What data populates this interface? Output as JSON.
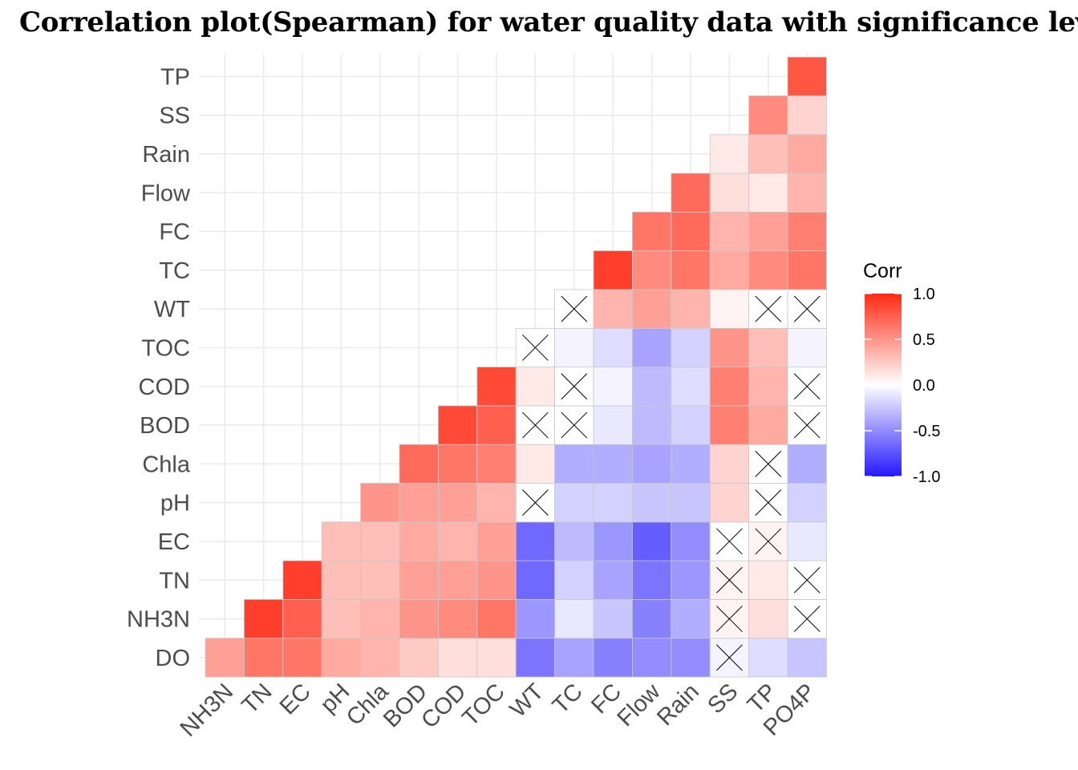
{
  "chart_data": {
    "type": "heatmap",
    "title": "Correlation plot(Spearman) for water quality data with significance level",
    "x_categories": [
      "NH3N",
      "TN",
      "EC",
      "pH",
      "Chla",
      "BOD",
      "COD",
      "TOC",
      "WT",
      "TC",
      "FC",
      "Flow",
      "Rain",
      "SS",
      "TP",
      "PO4P"
    ],
    "y_categories": [
      "DO",
      "NH3N",
      "TN",
      "EC",
      "pH",
      "Chla",
      "BOD",
      "COD",
      "TOC",
      "WT",
      "TC",
      "FC",
      "Flow",
      "Rain",
      "SS",
      "TP"
    ],
    "values": [
      [
        0.45,
        0.65,
        0.65,
        0.4,
        0.35,
        0.25,
        0.15,
        0.15,
        -0.6,
        -0.4,
        -0.55,
        -0.5,
        -0.5,
        -0.05,
        -0.15,
        -0.25
      ],
      [
        null,
        0.9,
        0.75,
        0.3,
        0.35,
        0.5,
        0.55,
        0.65,
        -0.45,
        -0.1,
        -0.25,
        -0.55,
        -0.35,
        0.05,
        0.15,
        0.0
      ],
      [
        null,
        null,
        0.9,
        0.3,
        0.3,
        0.45,
        0.45,
        0.5,
        -0.65,
        -0.2,
        -0.4,
        -0.6,
        -0.45,
        0.05,
        0.1,
        0.0
      ],
      [
        null,
        null,
        null,
        0.3,
        0.3,
        0.4,
        0.35,
        0.45,
        -0.65,
        -0.3,
        -0.45,
        -0.7,
        -0.5,
        0.0,
        0.05,
        -0.1
      ],
      [
        null,
        null,
        null,
        null,
        0.5,
        0.45,
        0.45,
        0.35,
        0.0,
        -0.2,
        -0.2,
        -0.25,
        -0.25,
        0.2,
        0.0,
        -0.2
      ],
      [
        null,
        null,
        null,
        null,
        null,
        0.7,
        0.65,
        0.6,
        0.1,
        -0.35,
        -0.35,
        -0.4,
        -0.35,
        0.2,
        0.0,
        -0.35
      ],
      [
        null,
        null,
        null,
        null,
        null,
        null,
        0.85,
        0.75,
        0.0,
        0.0,
        -0.1,
        -0.3,
        -0.2,
        0.6,
        0.4,
        0.0
      ],
      [
        null,
        null,
        null,
        null,
        null,
        null,
        null,
        0.85,
        0.1,
        0.0,
        -0.05,
        -0.3,
        -0.15,
        0.6,
        0.35,
        0.0
      ],
      [
        null,
        null,
        null,
        null,
        null,
        null,
        null,
        null,
        0.0,
        -0.05,
        -0.15,
        -0.4,
        -0.2,
        0.5,
        0.3,
        -0.05
      ],
      [
        null,
        null,
        null,
        null,
        null,
        null,
        null,
        null,
        null,
        0.0,
        0.35,
        0.45,
        0.35,
        0.05,
        0.0,
        0.0
      ],
      [
        null,
        null,
        null,
        null,
        null,
        null,
        null,
        null,
        null,
        null,
        0.9,
        0.55,
        0.65,
        0.4,
        0.55,
        0.65
      ],
      [
        null,
        null,
        null,
        null,
        null,
        null,
        null,
        null,
        null,
        null,
        null,
        0.65,
        0.7,
        0.35,
        0.45,
        0.6
      ],
      [
        null,
        null,
        null,
        null,
        null,
        null,
        null,
        null,
        null,
        null,
        null,
        null,
        0.7,
        0.15,
        0.1,
        0.35
      ],
      [
        null,
        null,
        null,
        null,
        null,
        null,
        null,
        null,
        null,
        null,
        null,
        null,
        null,
        0.1,
        0.3,
        0.4
      ],
      [
        null,
        null,
        null,
        null,
        null,
        null,
        null,
        null,
        null,
        null,
        null,
        null,
        null,
        null,
        0.55,
        0.2
      ],
      [
        null,
        null,
        null,
        null,
        null,
        null,
        null,
        null,
        null,
        null,
        null,
        null,
        null,
        null,
        null,
        0.8
      ]
    ],
    "insignificant": [
      [
        0,
        13
      ],
      [
        1,
        13
      ],
      [
        1,
        15
      ],
      [
        2,
        13
      ],
      [
        2,
        15
      ],
      [
        3,
        13
      ],
      [
        3,
        14
      ],
      [
        4,
        8
      ],
      [
        4,
        14
      ],
      [
        5,
        14
      ],
      [
        6,
        8
      ],
      [
        6,
        9
      ],
      [
        6,
        15
      ],
      [
        7,
        9
      ],
      [
        7,
        15
      ],
      [
        8,
        8
      ],
      [
        9,
        9
      ],
      [
        9,
        14
      ],
      [
        9,
        15
      ]
    ],
    "legend": {
      "title": "Corr",
      "ticks": [
        1.0,
        0.5,
        0.0,
        -0.5,
        -1.0
      ],
      "tick_labels": [
        "1.0",
        "0.5",
        "0.0",
        "-0.5",
        "-1.0"
      ],
      "colors": {
        "high": "#ff2a14",
        "mid": "#ffffff",
        "low": "#2418ff"
      }
    },
    "limits": [
      -1,
      1
    ],
    "grid": true
  }
}
